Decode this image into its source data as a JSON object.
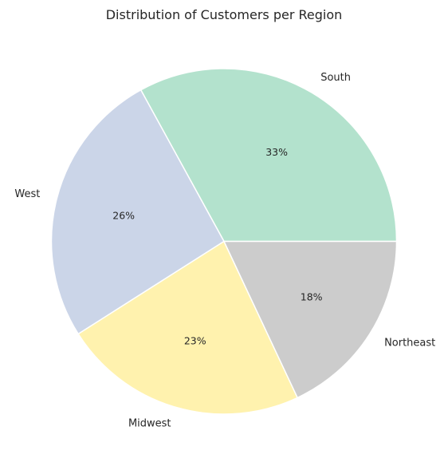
{
  "chart_data": {
    "type": "pie",
    "title": "Distribution of Customers per Region",
    "categories": [
      "South",
      "West",
      "Midwest",
      "Northeast"
    ],
    "values": [
      33,
      26,
      23,
      18
    ],
    "percent_labels": [
      "33%",
      "26%",
      "23%",
      "18%"
    ],
    "colors": [
      "#b3e2cd",
      "#cbd5e8",
      "#fff2ae",
      "#cccccc"
    ],
    "start_angle_deg": 0,
    "direction": "counterclockwise",
    "edge_color": "#ffffff",
    "legend": "none"
  }
}
